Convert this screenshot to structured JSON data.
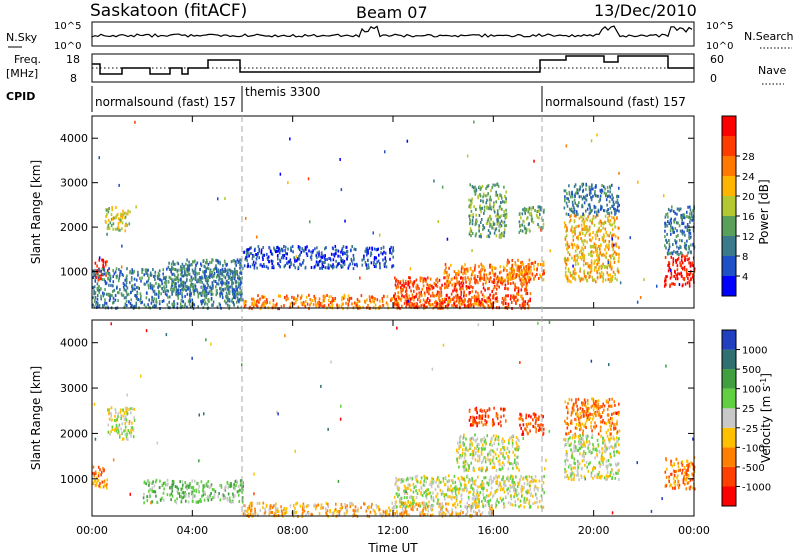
{
  "header": {
    "station": "Saskatoon (fitACF)",
    "beam": "Beam 07",
    "date": "13/Dec/2010"
  },
  "noise_panel": {
    "left_label": "N.Sky",
    "right_label": "N.Search",
    "ticks": [
      "10^5",
      "10^0"
    ],
    "right_ticks": [
      "10^5",
      "10^0"
    ]
  },
  "freq_panel": {
    "left_label_1": "Freq.",
    "left_label_2": "[MHz]",
    "ticks": [
      "18",
      "8"
    ],
    "right_label": "Nave",
    "right_ticks": [
      "60",
      "0"
    ]
  },
  "cpid": {
    "label": "CPID",
    "segments": [
      {
        "name": "normalsound (fast) 157",
        "start_h": 0,
        "end_h": 6
      },
      {
        "name": "themis 3300",
        "start_h": 6,
        "end_h": 18
      },
      {
        "name": "normalsound (fast) 157",
        "start_h": 18,
        "end_h": 24
      }
    ]
  },
  "x_axis": {
    "label": "Time UT",
    "ticks": [
      "00:00",
      "04:00",
      "08:00",
      "12:00",
      "16:00",
      "20:00",
      "00:00"
    ]
  },
  "power_panel": {
    "ylabel": "Slant Range [km]",
    "yticks": [
      "1000",
      "2000",
      "3000",
      "4000"
    ],
    "colorbar_label": "Power [dB]",
    "colorbar_ticks": [
      "4",
      "8",
      "12",
      "16",
      "20",
      "24",
      "28"
    ],
    "colors": [
      "#0000ff",
      "#1e50c8",
      "#3a7a8a",
      "#5aa05a",
      "#b4c832",
      "#ffb400",
      "#ff7800",
      "#ff3c00",
      "#ff0000"
    ]
  },
  "velocity_panel": {
    "ylabel": "Slant Range [km]",
    "yticks": [
      "1000",
      "2000",
      "3000",
      "4000"
    ],
    "colorbar_label": "Velocity [m s",
    "colorbar_sup": "-1",
    "colorbar_ticks": [
      "1000",
      "500",
      "100",
      "25",
      "-25",
      "-100",
      "-500",
      "-1000"
    ],
    "colors": [
      "#2040c0",
      "#307070",
      "#40a040",
      "#60d040",
      "#c8c8c8",
      "#ffc000",
      "#ff8000",
      "#ff4000",
      "#ff0000"
    ]
  },
  "chart_data": {
    "type": "heatmap",
    "x_range_hours": [
      0,
      24
    ],
    "y_range_km": [
      180,
      4500
    ],
    "power_regions": [
      {
        "t0": 0.0,
        "t1": 0.6,
        "r0": 800,
        "r1": 1300,
        "level": 8
      },
      {
        "t0": 0.5,
        "t1": 1.5,
        "r0": 1950,
        "r1": 2500,
        "level": 4
      },
      {
        "t0": 0.0,
        "t1": 6.0,
        "r0": 200,
        "r1": 1100,
        "level": 2
      },
      {
        "t0": 3.0,
        "t1": 6.0,
        "r0": 500,
        "r1": 1300,
        "level": 2
      },
      {
        "t0": 6.0,
        "t1": 12.0,
        "r0": 1100,
        "r1": 1600,
        "level": 1
      },
      {
        "t0": 6.0,
        "t1": 16.0,
        "r0": 200,
        "r1": 500,
        "level": 6
      },
      {
        "t0": 12.0,
        "t1": 17.5,
        "r0": 200,
        "r1": 900,
        "level": 7
      },
      {
        "t0": 14.0,
        "t1": 17.5,
        "r0": 800,
        "r1": 1200,
        "level": 6
      },
      {
        "t0": 15.0,
        "t1": 16.5,
        "r0": 1800,
        "r1": 3000,
        "level": 3
      },
      {
        "t0": 16.5,
        "t1": 18.0,
        "r0": 850,
        "r1": 1300,
        "level": 6
      },
      {
        "t0": 17.0,
        "t1": 18.0,
        "r0": 1900,
        "r1": 2500,
        "level": 3
      },
      {
        "t0": 18.8,
        "t1": 21.0,
        "r0": 800,
        "r1": 2300,
        "level": 5
      },
      {
        "t0": 18.8,
        "t1": 21.0,
        "r0": 2300,
        "r1": 3000,
        "level": 2
      },
      {
        "t0": 22.8,
        "t1": 24.0,
        "r0": 700,
        "r1": 1400,
        "level": 8
      },
      {
        "t0": 22.8,
        "t1": 24.0,
        "r0": 1400,
        "r1": 2500,
        "level": 2
      }
    ],
    "velocity_regions": [
      {
        "t0": 0.0,
        "t1": 0.6,
        "r0": 800,
        "r1": 1300,
        "level": 6
      },
      {
        "t0": 0.6,
        "t1": 1.7,
        "r0": 1900,
        "r1": 2600,
        "level": 4
      },
      {
        "t0": 2.0,
        "t1": 6.0,
        "r0": 500,
        "r1": 1000,
        "level": 3
      },
      {
        "t0": 6.0,
        "t1": 16.0,
        "r0": 200,
        "r1": 500,
        "level": 5
      },
      {
        "t0": 12.0,
        "t1": 18.0,
        "r0": 400,
        "r1": 1100,
        "level": 4
      },
      {
        "t0": 14.5,
        "t1": 17.0,
        "r0": 1200,
        "r1": 2000,
        "level": 4
      },
      {
        "t0": 15.0,
        "t1": 16.5,
        "r0": 2200,
        "r1": 2600,
        "level": 7
      },
      {
        "t0": 17.0,
        "t1": 18.0,
        "r0": 2000,
        "r1": 2500,
        "level": 7
      },
      {
        "t0": 18.8,
        "t1": 21.0,
        "r0": 1000,
        "r1": 2000,
        "level": 4
      },
      {
        "t0": 18.8,
        "t1": 21.0,
        "r0": 2000,
        "r1": 2800,
        "level": 6
      },
      {
        "t0": 22.8,
        "t1": 24.0,
        "r0": 800,
        "r1": 1500,
        "level": 6
      }
    ]
  }
}
